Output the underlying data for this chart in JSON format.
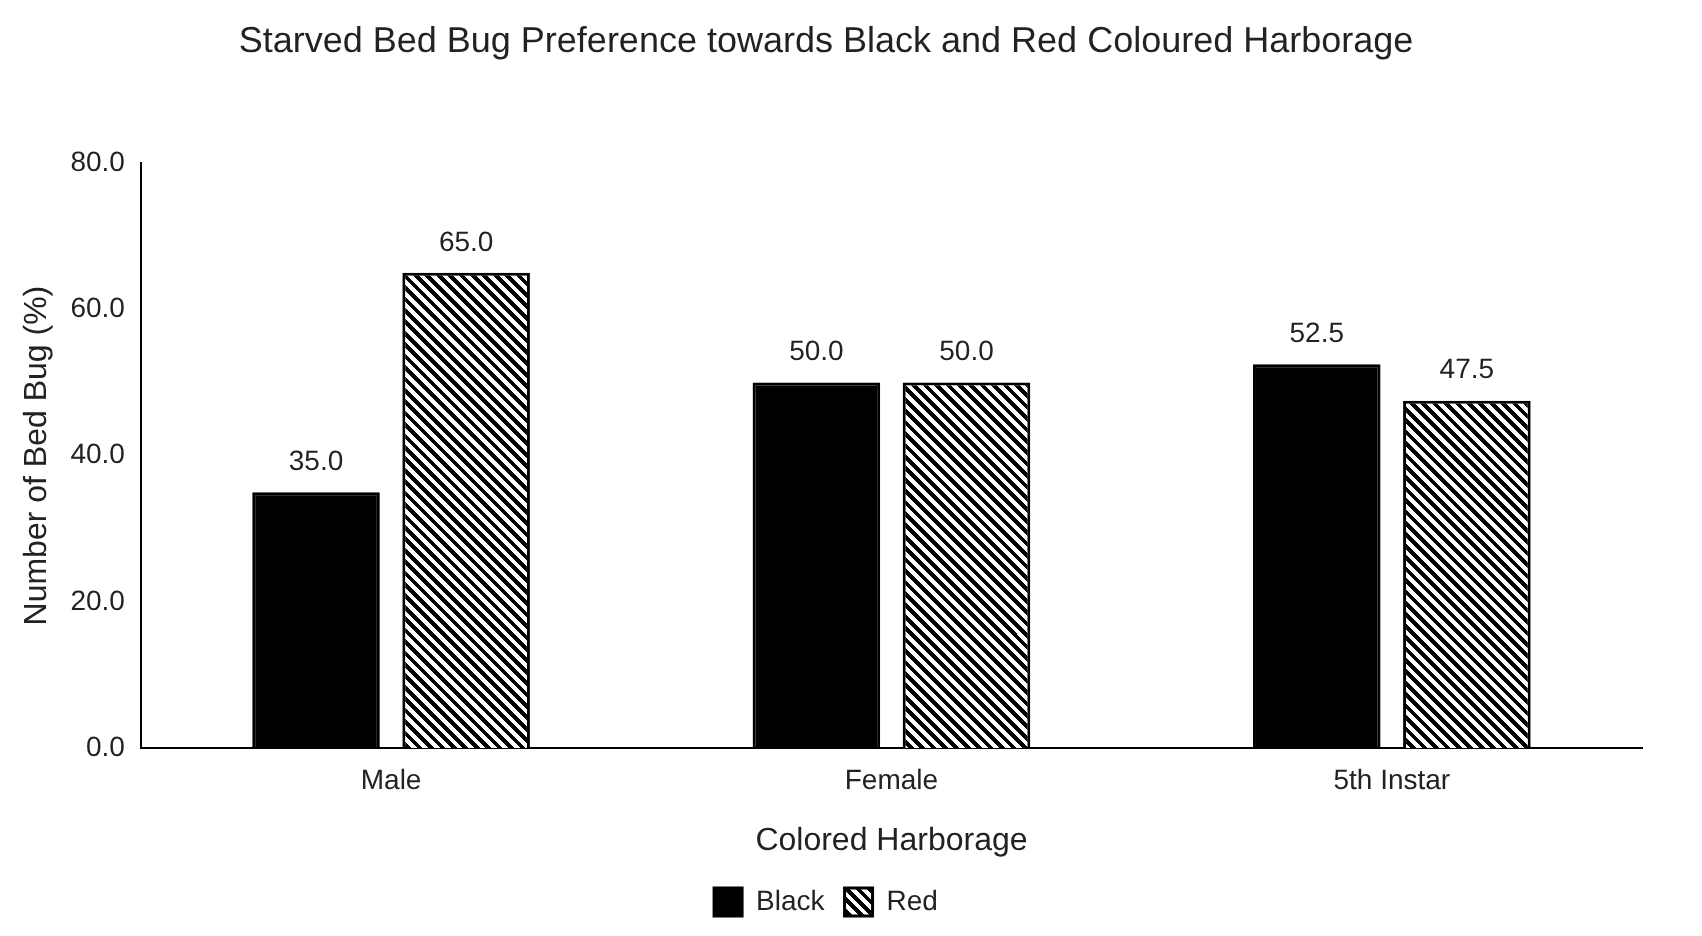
{
  "chart_data": {
    "type": "bar",
    "title": "Starved Bed Bug Preference towards Black and Red Coloured Harborage",
    "xlabel": "Colored Harborage",
    "ylabel": "Number of Bed Bug (%)",
    "categories": [
      "Male",
      "Female",
      "5th Instar"
    ],
    "series": [
      {
        "name": "Black",
        "color": "#000000",
        "values": [
          35.0,
          50.0,
          52.5
        ],
        "value_labels": [
          "35.0",
          "50.0",
          "52.5"
        ]
      },
      {
        "name": "Red",
        "color": "#000000",
        "values": [
          65.0,
          50.0,
          47.5
        ],
        "value_labels": [
          "65.0",
          "50.0",
          "47.5"
        ]
      }
    ],
    "ylim": [
      0,
      80
    ],
    "yticks": [
      {
        "value": 0,
        "label": "0.0"
      },
      {
        "value": 20,
        "label": "20.0"
      },
      {
        "value": 40,
        "label": "40.0"
      },
      {
        "value": 60,
        "label": "60.0"
      },
      {
        "value": 80,
        "label": "80.0"
      }
    ],
    "grid": false,
    "legend": "bottom"
  }
}
